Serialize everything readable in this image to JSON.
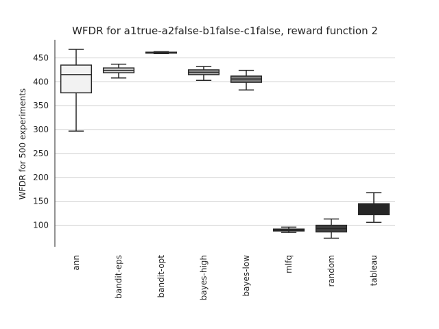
{
  "chart_data": {
    "type": "box",
    "title": "WFDR for a1true-a2false-b1false-c1false, reward function 2",
    "xlabel": "",
    "ylabel": "WFDR for 500 experiments",
    "ylim": [
      55,
      488
    ],
    "yticks": [
      100,
      150,
      200,
      250,
      300,
      350,
      400,
      450
    ],
    "grid": "horizontal",
    "categories": [
      "ann",
      "bandit-eps",
      "bandit-opt",
      "bayes-high",
      "bayes-low",
      "mlfq",
      "random",
      "tableau"
    ],
    "boxes": [
      {
        "category": "ann",
        "whisker_low": 297,
        "q1": 377,
        "median": 415,
        "q3": 435,
        "whisker_high": 468,
        "color": "#f2f2f2"
      },
      {
        "category": "bandit-eps",
        "whisker_low": 408,
        "q1": 419,
        "median": 424,
        "q3": 429,
        "whisker_high": 437,
        "color": "#d9d9d9"
      },
      {
        "category": "bandit-opt",
        "whisker_low": 459,
        "q1": 460,
        "median": 461,
        "q3": 462,
        "whisker_high": 463,
        "color": "#bfbfbf"
      },
      {
        "category": "bayes-high",
        "whisker_low": 403,
        "q1": 415,
        "median": 420,
        "q3": 425,
        "whisker_high": 432,
        "color": "#a6a6a6"
      },
      {
        "category": "bayes-low",
        "whisker_low": 383,
        "q1": 399,
        "median": 406,
        "q3": 412,
        "whisker_high": 424,
        "color": "#7f7f7f"
      },
      {
        "category": "mlfq",
        "whisker_low": 85,
        "q1": 88,
        "median": 90,
        "q3": 92,
        "whisker_high": 96,
        "color": "#595959"
      },
      {
        "category": "random",
        "whisker_low": 73,
        "q1": 86,
        "median": 93,
        "q3": 100,
        "whisker_high": 113,
        "color": "#404040"
      },
      {
        "category": "tableau",
        "whisker_low": 106,
        "q1": 122,
        "median": 135,
        "q3": 145,
        "whisker_high": 168,
        "color": "#262626"
      }
    ]
  }
}
